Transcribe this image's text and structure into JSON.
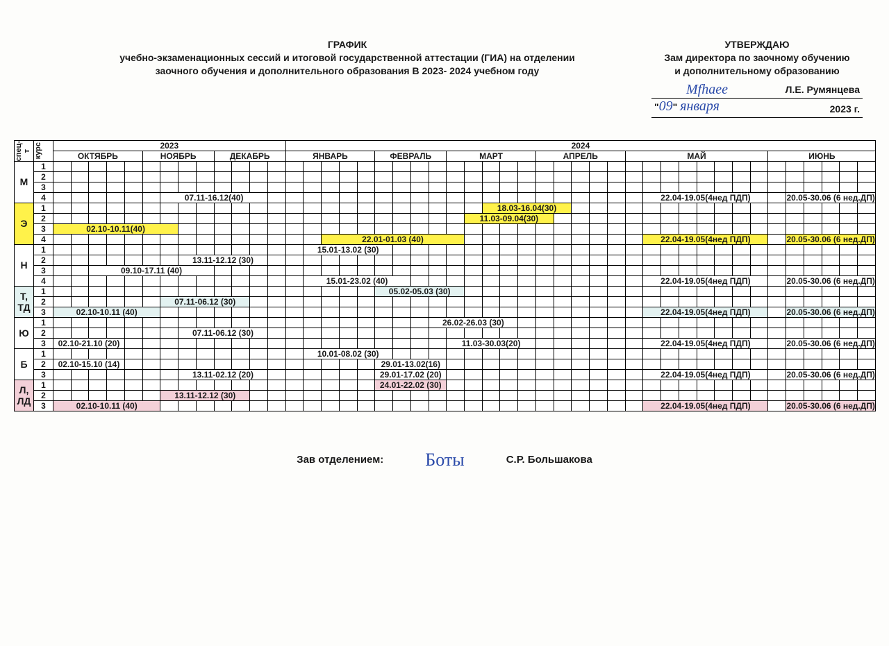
{
  "header": {
    "title_line1": "ГРАФИК",
    "title_line2": "учебно-экзаменационных сессий и итоговой государственной аттестации (ГИА) на отделении",
    "title_line3": "заочного обучения и дополнительного образования В 2023- 2024 учебном году",
    "approve_line1": "УТВЕРЖДАЮ",
    "approve_line2": "Зам директора по заочному обучению",
    "approve_line3": "и дополнительному образованию",
    "approver_name": "Л.Е. Румянцева",
    "approve_date_day_hw": "09",
    "approve_date_month_hw": "января",
    "approve_year_suffix": "2023 г.",
    "signature1_hw": "Mfhaee"
  },
  "columns": {
    "spec": "спец-т",
    "course": "курс",
    "year_2023": "2023",
    "year_2024": "2024",
    "months": [
      "ОКТЯБРЬ",
      "НОЯБРЬ",
      "ДЕКАБРЬ",
      "ЯНВАРЬ",
      "ФЕВРАЛЬ",
      "МАРТ",
      "АПРЕЛЬ",
      "МАЙ",
      "ИЮНЬ"
    ]
  },
  "groups": [
    {
      "label": "М",
      "bg": "no-bg",
      "rows": [
        {
          "course": "1",
          "cells": []
        },
        {
          "course": "2",
          "cells": []
        },
        {
          "course": "3",
          "cells": []
        },
        {
          "course": "4",
          "cells": [
            {
              "start": 6,
              "span": 6,
              "text": "07.11-16.12(40)"
            },
            {
              "start": 33,
              "span": 7,
              "text": "22.04-19.05(4нед ПДП)"
            },
            {
              "start": 41,
              "span": 5,
              "text": "20.05-30.06 (6 нед.ДП)"
            }
          ]
        }
      ]
    },
    {
      "label": "Э",
      "bg": "bg-yellow",
      "rows": [
        {
          "course": "1",
          "cells": [
            {
              "start": 24,
              "span": 5,
              "text": "18.03-16.04(30)",
              "bg": "bg-yellow"
            }
          ]
        },
        {
          "course": "2",
          "cells": [
            {
              "start": 23,
              "span": 5,
              "text": "11.03-09.04(30)",
              "bg": "bg-yellow"
            }
          ]
        },
        {
          "course": "3",
          "cells": [
            {
              "start": 0,
              "span": 7,
              "text": "02.10-10.11(40)",
              "bg": "bg-yellow"
            }
          ]
        },
        {
          "course": "4",
          "cells": [
            {
              "start": 15,
              "span": 8,
              "text": "22.01-01.03 (40)",
              "bg": "bg-yellow"
            },
            {
              "start": 33,
              "span": 7,
              "text": "22.04-19.05(4нед ПДП)",
              "bg": "bg-yellow"
            },
            {
              "start": 41,
              "span": 5,
              "text": "20.05-30.06 (6 нед.ДП)",
              "bg": "bg-yellow"
            }
          ]
        }
      ]
    },
    {
      "label": "Н",
      "bg": "no-bg",
      "rows": [
        {
          "course": "1",
          "cells": [
            {
              "start": 14,
              "span": 5,
              "text": "15.01-13.02 (30)"
            }
          ]
        },
        {
          "course": "2",
          "cells": [
            {
              "start": 7,
              "span": 5,
              "text": "13.11-12.12 (30)"
            }
          ]
        },
        {
          "course": "3",
          "cells": [
            {
              "start": 2,
              "span": 7,
              "text": "09.10-17.11 (40)"
            }
          ]
        },
        {
          "course": "4",
          "cells": [
            {
              "start": 14,
              "span": 6,
              "text": "15.01-23.02 (40)"
            },
            {
              "start": 33,
              "span": 7,
              "text": "22.04-19.05(4нед ПДП)"
            },
            {
              "start": 41,
              "span": 5,
              "text": "20.05-30.06 (6 нед.ДП)"
            }
          ]
        }
      ]
    },
    {
      "label": "Т, ТД",
      "bg": "bg-teal",
      "rows": [
        {
          "course": "1",
          "cells": [
            {
              "start": 18,
              "span": 5,
              "text": "05.02-05.03 (30)",
              "bg": "bg-teal"
            }
          ]
        },
        {
          "course": "2",
          "cells": [
            {
              "start": 6,
              "span": 5,
              "text": "07.11-06.12 (30)",
              "bg": "bg-teal"
            }
          ]
        },
        {
          "course": "3",
          "cells": [
            {
              "start": 0,
              "span": 6,
              "text": "02.10-10.11 (40)",
              "bg": "bg-teal"
            },
            {
              "start": 33,
              "span": 7,
              "text": "22.04-19.05(4нед ПДП)",
              "bg": "bg-teal"
            },
            {
              "start": 41,
              "span": 5,
              "text": "20.05-30.06 (6 нед.ДП)",
              "bg": "bg-teal"
            }
          ]
        }
      ]
    },
    {
      "label": "Ю",
      "bg": "no-bg",
      "rows": [
        {
          "course": "1",
          "cells": [
            {
              "start": 21,
              "span": 5,
              "text": "26.02-26.03 (30)"
            }
          ]
        },
        {
          "course": "2",
          "cells": [
            {
              "start": 7,
              "span": 5,
              "text": "07.11-06.12 (30)"
            }
          ]
        },
        {
          "course": "3",
          "cells": [
            {
              "start": 0,
              "span": 4,
              "text": "02.10-21.10 (20)"
            },
            {
              "start": 22,
              "span": 5,
              "text": "11.03-30.03(20)"
            },
            {
              "start": 33,
              "span": 7,
              "text": "22.04-19.05(4нед ПДП)"
            },
            {
              "start": 41,
              "span": 5,
              "text": "20.05-30.06 (6 нед.ДП)"
            }
          ]
        }
      ]
    },
    {
      "label": "Б",
      "bg": "no-bg",
      "rows": [
        {
          "course": "1",
          "cells": [
            {
              "start": 14,
              "span": 5,
              "text": "10.01-08.02 (30)"
            }
          ]
        },
        {
          "course": "2",
          "cells": [
            {
              "start": 0,
              "span": 4,
              "text": "02.10-15.10 (14)"
            },
            {
              "start": 18,
              "span": 4,
              "text": "29.01-13.02(16)"
            }
          ]
        },
        {
          "course": "3",
          "cells": [
            {
              "start": 7,
              "span": 5,
              "text": "13.11-02.12 (20)"
            },
            {
              "start": 18,
              "span": 4,
              "text": "29.01-17.02 (20)"
            },
            {
              "start": 33,
              "span": 7,
              "text": "22.04-19.05(4нед ПДП)"
            },
            {
              "start": 41,
              "span": 5,
              "text": "20.05-30.06 (6 нед.ДП)"
            }
          ]
        }
      ]
    },
    {
      "label": "Л, ЛД",
      "bg": "bg-pink",
      "rows": [
        {
          "course": "1",
          "cells": [
            {
              "start": 18,
              "span": 4,
              "text": "24.01-22.02 (30)",
              "bg": "bg-pink"
            }
          ]
        },
        {
          "course": "2",
          "cells": [
            {
              "start": 6,
              "span": 5,
              "text": "13.11-12.12 (30)",
              "bg": "bg-pink"
            }
          ]
        },
        {
          "course": "3",
          "cells": [
            {
              "start": 0,
              "span": 6,
              "text": "02.10-10.11 (40)",
              "bg": "bg-pink"
            },
            {
              "start": 33,
              "span": 7,
              "text": "22.04-19.05(4нед ПДП)",
              "bg": "bg-pink"
            },
            {
              "start": 41,
              "span": 5,
              "text": "20.05-30.06 (6 нед.ДП)",
              "bg": "bg-pink"
            }
          ]
        }
      ]
    }
  ],
  "layout": {
    "total_week_cols": 46,
    "month_spans": [
      5,
      4,
      4,
      5,
      4,
      5,
      5,
      8,
      6
    ]
  },
  "footer": {
    "label": "Зав отделением:",
    "signature_hw": "Боты",
    "name": "С.Р. Большакова"
  },
  "colors": {
    "yellow": "#fff24a",
    "teal": "#e3f2f1",
    "pink": "#f3d0d8",
    "ink_blue": "#2a4aa9",
    "background": "#fdfdfb"
  }
}
